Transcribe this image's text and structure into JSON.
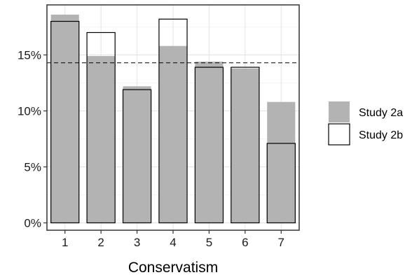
{
  "chart_data": {
    "type": "bar",
    "xlabel": "Conservatism",
    "ylabel": "",
    "categories": [
      "1",
      "2",
      "3",
      "4",
      "5",
      "6",
      "7"
    ],
    "ylim": [
      0,
      18.8
    ],
    "yticks": [
      0,
      5,
      10,
      15
    ],
    "ytick_labels": [
      "0%",
      "5%",
      "10%",
      "15%"
    ],
    "reference_line": {
      "value": 14.3,
      "style": "dashed",
      "color": "#000000"
    },
    "grid": true,
    "legend": {
      "position": "right"
    },
    "series": [
      {
        "name": "Study 2a",
        "values": [
          18.6,
          14.9,
          12.2,
          15.8,
          14.4,
          13.8,
          10.8
        ],
        "fill": "#b3b3b3",
        "stroke": "none"
      },
      {
        "name": "Study 2b",
        "values": [
          18.0,
          17.0,
          11.9,
          18.2,
          13.9,
          13.9,
          7.1
        ],
        "fill": "none",
        "stroke": "#000000"
      }
    ]
  }
}
